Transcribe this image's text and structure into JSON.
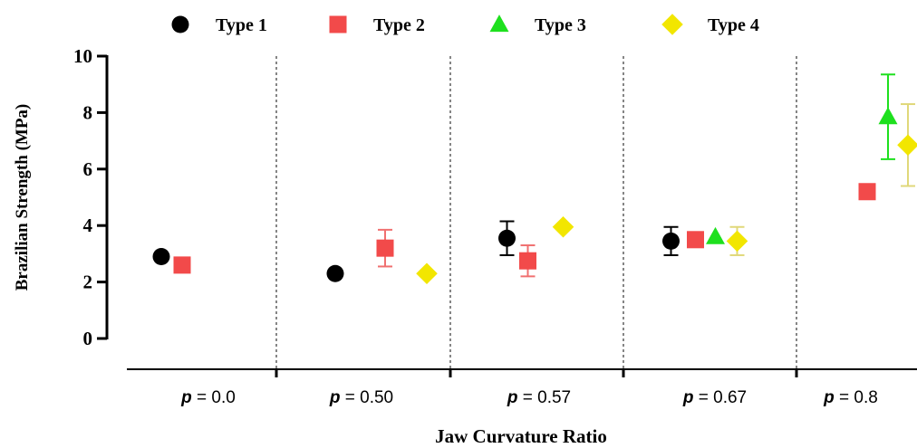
{
  "chart_data": {
    "type": "scatter",
    "title": "",
    "xlabel": "Jaw Curvature Ratio",
    "ylabel": "Brazilian  Strength (MPa)",
    "ylim": [
      0,
      10
    ],
    "yticks": [
      0,
      2,
      4,
      6,
      8,
      10
    ],
    "grid": false,
    "legend_position": "top",
    "groups": [
      {
        "prefix": "p",
        "label": " = 0.0"
      },
      {
        "prefix": "p",
        "label": " = 0.50"
      },
      {
        "prefix": "p",
        "label": " = 0.57"
      },
      {
        "prefix": "p",
        "label": " = 0.67"
      },
      {
        "prefix": "p",
        "label": " = 0.8"
      }
    ],
    "series": [
      {
        "name": "Type 1",
        "marker": "circle",
        "color": "#000000",
        "points": [
          {
            "group": 0,
            "y": 2.9,
            "err": 0
          },
          {
            "group": 1,
            "y": 2.3,
            "err": 0
          },
          {
            "group": 2,
            "y": 3.55,
            "err": 0.6
          },
          {
            "group": 3,
            "y": 3.45,
            "err": 0.5
          }
        ]
      },
      {
        "name": "Type 2",
        "marker": "square",
        "color": "#f24a4a",
        "points": [
          {
            "group": 0,
            "y": 2.6,
            "err": 0.25
          },
          {
            "group": 1,
            "y": 3.2,
            "err": 0.65
          },
          {
            "group": 2,
            "y": 2.75,
            "err": 0.55
          },
          {
            "group": 3,
            "y": 3.5,
            "err": 0
          },
          {
            "group": 4,
            "y": 5.2,
            "err": 0
          }
        ]
      },
      {
        "name": "Type 3",
        "marker": "triangle",
        "color": "#1ee01e",
        "points": [
          {
            "group": 3,
            "y": 3.6,
            "err": 0
          },
          {
            "group": 4,
            "y": 7.85,
            "err": 1.5
          }
        ]
      },
      {
        "name": "Type 4",
        "marker": "diamond",
        "color": "#f2e600",
        "points": [
          {
            "group": 1,
            "y": 2.3,
            "err": 0
          },
          {
            "group": 2,
            "y": 3.95,
            "err": 0
          },
          {
            "group": 3,
            "y": 3.45,
            "err": 0.5
          },
          {
            "group": 4,
            "y": 6.85,
            "err": 1.45
          }
        ]
      }
    ]
  }
}
